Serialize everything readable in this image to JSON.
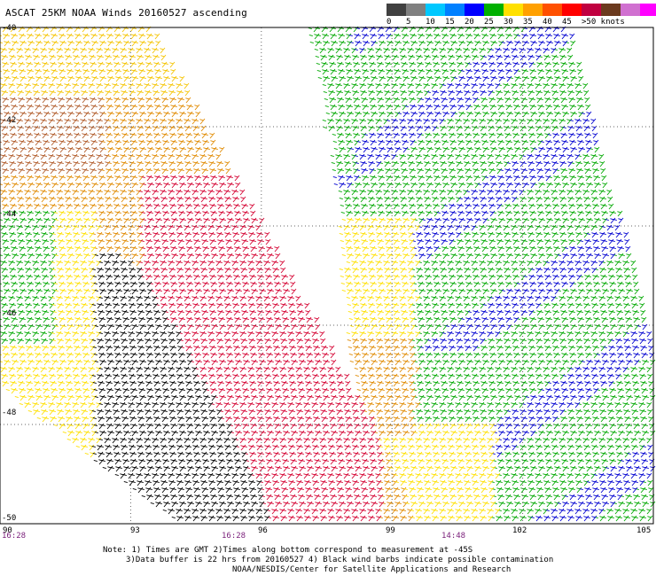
{
  "title": "ASCAT 25KM NOAA Winds 20160527 ascending",
  "speed_scale": {
    "labels": [
      "0",
      "5",
      "10",
      "15",
      "20",
      "25",
      "30",
      "35",
      "40",
      "45",
      ">50 knots"
    ],
    "colors": [
      "#404040",
      "#808080",
      "#00c8ff",
      "#0080ff",
      "#0000ff",
      "#00b000",
      "#ffe000",
      "#ffa000",
      "#ff5000",
      "#ff0000",
      "#c00040",
      "#6b3a1e",
      "#d070d0",
      "#ff00ff",
      "#6000c0"
    ]
  },
  "map": {
    "lat_labels": [
      "-40",
      "-42",
      "-44",
      "-46",
      "-48",
      "-50"
    ],
    "lon_labels": [
      "90",
      "93",
      "96",
      "99",
      "102",
      "105"
    ],
    "time_labels": [
      "16:28",
      "16:28",
      "14:48"
    ],
    "lat_range": [
      -50,
      -40
    ],
    "lon_range": [
      90,
      105
    ],
    "grid": true
  },
  "notes": [
    "Note: 1) Times are GMT 2)Times along bottom correspond to measurement at -45S",
    "3)Data buffer is 22 hrs from 20160527 4) Black wind barbs indicate possible contamination",
    "NOAA/NESDIS/Center for Satellite Applications and Research"
  ]
}
